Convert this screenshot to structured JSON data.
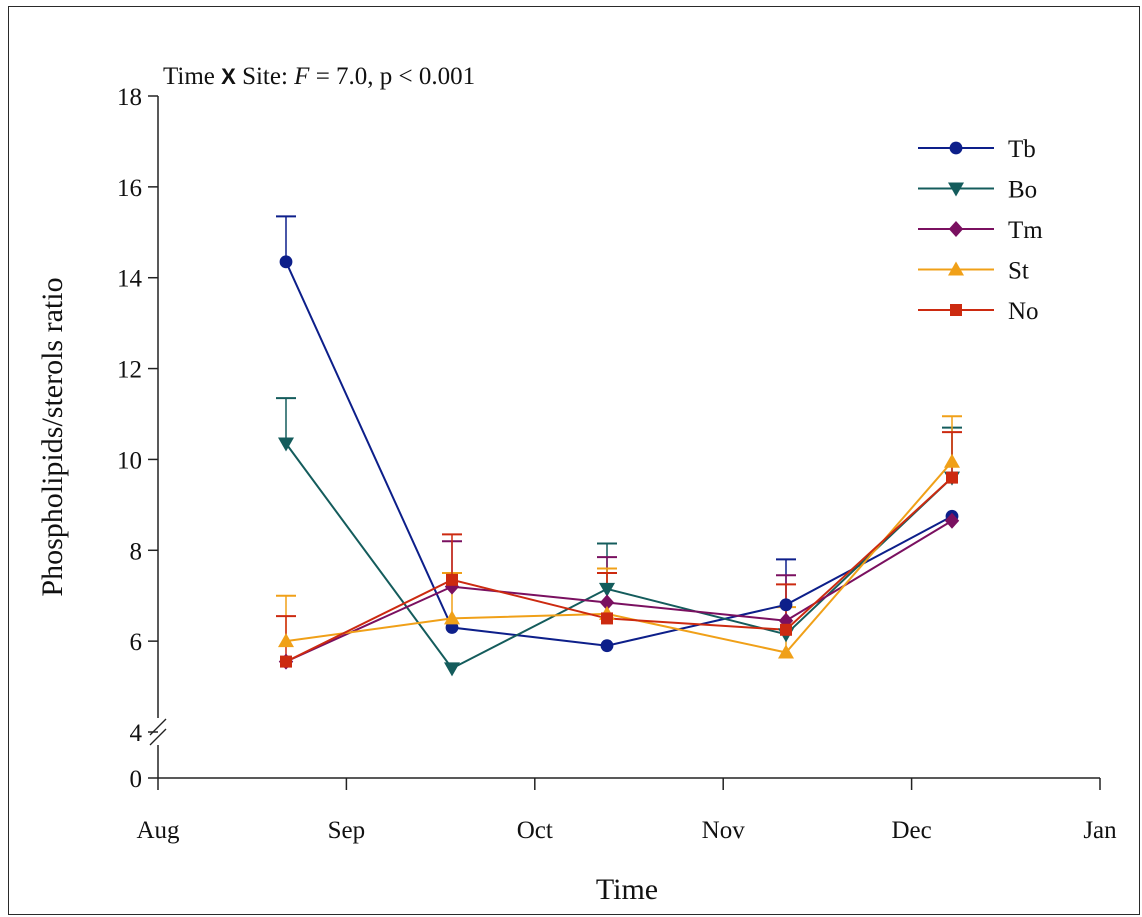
{
  "chart_data": {
    "type": "line",
    "annotation": {
      "prefix": "Time ",
      "times_symbol": "X",
      "middle": " Site: ",
      "f_symbol": "F",
      "rest": " = 7.0, p < 0.001"
    },
    "xlabel": "Time",
    "ylabel": "Phospholipids/sterols ratio",
    "x_ticks": [
      "Aug",
      "Sep",
      "Oct",
      "Nov",
      "Dec",
      "Jan"
    ],
    "y_ticks": [
      0,
      4,
      6,
      8,
      10,
      12,
      14,
      16,
      18
    ],
    "ylim": [
      4,
      18
    ],
    "y_axis_break": true,
    "x_sample_dates": [
      "Aug 27",
      "Sep 20",
      "Oct 14",
      "Nov 13",
      "Dec 8"
    ],
    "legend_position": "top-right",
    "series": [
      {
        "name": "Tb",
        "color": "#0d1f8a",
        "marker": "circle",
        "values": [
          14.35,
          6.3,
          5.9,
          6.8,
          8.75
        ],
        "errors": [
          1.0,
          0.0,
          0.0,
          1.0,
          0.0
        ]
      },
      {
        "name": "Bo",
        "color": "#145c5c",
        "marker": "triangle-down",
        "values": [
          10.35,
          5.4,
          7.15,
          6.15,
          9.6
        ],
        "errors": [
          1.0,
          0.0,
          1.0,
          0.0,
          1.1
        ]
      },
      {
        "name": "Tm",
        "color": "#7a1060",
        "marker": "diamond",
        "values": [
          5.55,
          7.2,
          6.85,
          6.45,
          8.65
        ],
        "errors": [
          0.0,
          1.0,
          1.0,
          1.0,
          0.0
        ]
      },
      {
        "name": "St",
        "color": "#f0a018",
        "marker": "triangle-up",
        "values": [
          6.0,
          6.5,
          6.6,
          5.75,
          9.95
        ],
        "errors": [
          1.0,
          1.0,
          1.0,
          1.0,
          1.0
        ]
      },
      {
        "name": "No",
        "color": "#cc2a10",
        "marker": "square",
        "values": [
          5.55,
          7.35,
          6.5,
          6.25,
          9.6
        ],
        "errors": [
          1.0,
          1.0,
          1.0,
          1.0,
          1.0
        ]
      }
    ]
  }
}
